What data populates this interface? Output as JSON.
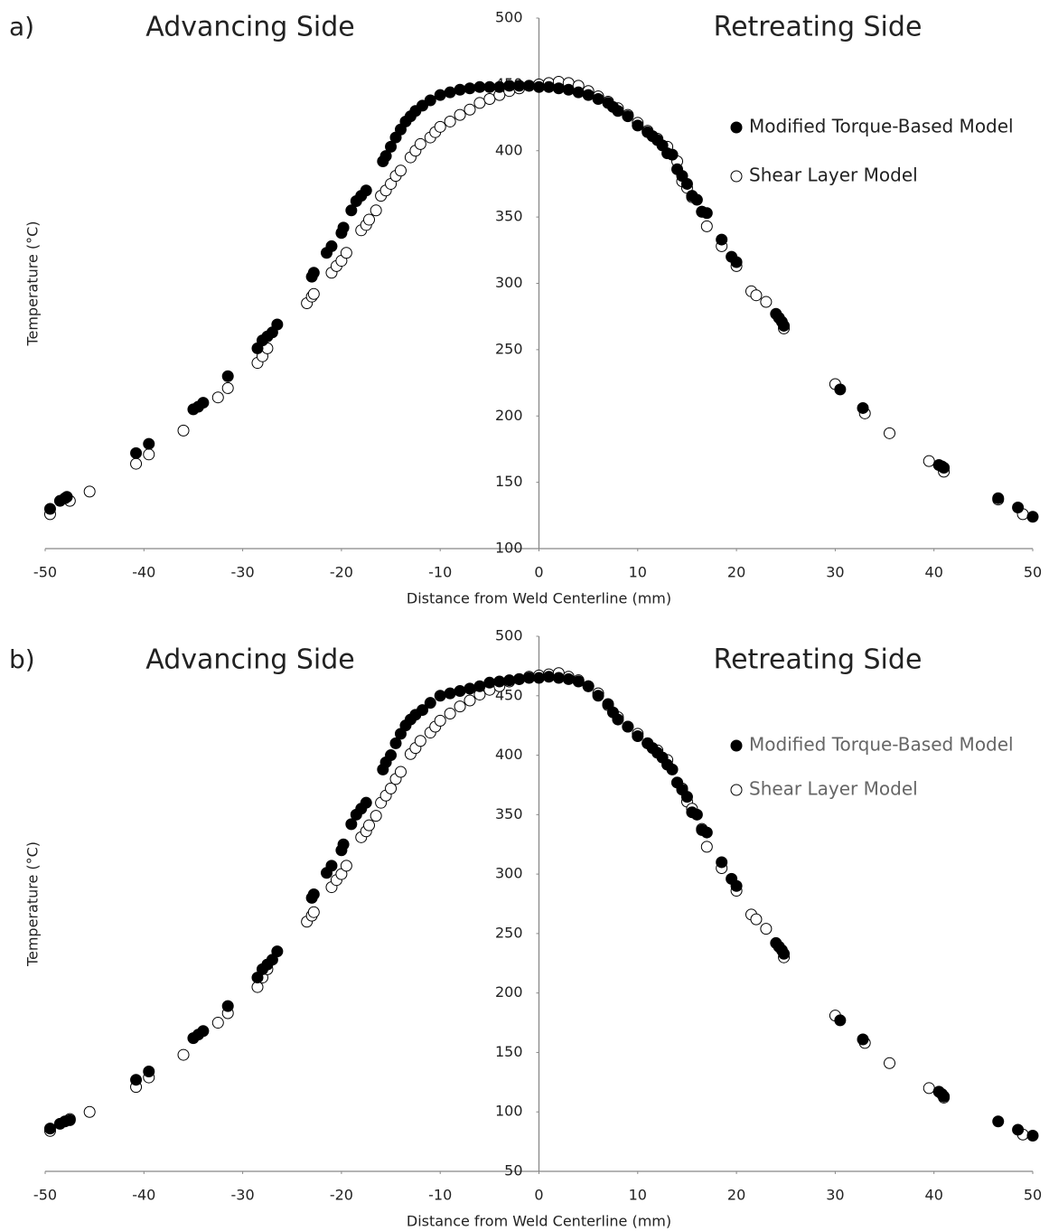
{
  "chart_data": [
    {
      "type": "scatter",
      "panel_label": "a)",
      "annotations": [
        "Advancing Side",
        "Retreating Side"
      ],
      "xlabel": "Distance from Weld Centerline (mm)",
      "ylabel": "Temperature (°C)",
      "xlim": [
        -50,
        50
      ],
      "xticks": [
        -50,
        -40,
        -30,
        -20,
        -10,
        0,
        10,
        20,
        30,
        40,
        50
      ],
      "ylim": [
        100,
        500
      ],
      "yticks": [
        100,
        150,
        200,
        250,
        300,
        350,
        400,
        450,
        500
      ],
      "grid": false,
      "legend": "upper right",
      "legend_text_color": "#222222",
      "series": [
        {
          "name": "Modified Torque-Based Model",
          "color": "#000000",
          "marker": "filled",
          "x": [
            -49.5,
            -48.5,
            -48,
            -47.8,
            -40.8,
            -39.5,
            -35,
            -34.5,
            -34,
            -31.5,
            -28.5,
            -28,
            -27.5,
            -27,
            -26.5,
            -23,
            -22.8,
            -21.5,
            -21,
            -20,
            -19.8,
            -19,
            -18.5,
            -18,
            -17.5,
            -15.8,
            -15.5,
            -15,
            -14.5,
            -14,
            -13.5,
            -13,
            -12.5,
            -11.8,
            -11,
            -10,
            -9,
            -8,
            -7,
            -6,
            -5,
            -4,
            -3,
            -2,
            -1,
            0,
            1,
            2,
            3,
            4,
            5,
            6,
            7,
            7.5,
            8,
            9,
            10,
            11,
            11.5,
            12,
            12.5,
            13,
            13.5,
            14,
            14.5,
            15,
            15.5,
            16,
            16.5,
            17,
            18.5,
            19.5,
            20,
            24,
            24.3,
            24.6,
            24.8,
            30.5,
            32.8,
            40.5,
            40.8,
            41,
            46.5,
            48.5,
            50
          ],
          "values": [
            130,
            136,
            138,
            139,
            172,
            179,
            205,
            207,
            210,
            230,
            251,
            257,
            260,
            263,
            269,
            305,
            308,
            323,
            328,
            338,
            342,
            355,
            362,
            366,
            370,
            392,
            396,
            403,
            410,
            416,
            422,
            426,
            430,
            434,
            438,
            442,
            444,
            446,
            447,
            448,
            448,
            448,
            449,
            449,
            449,
            448,
            448,
            447,
            446,
            444,
            442,
            439,
            436,
            433,
            430,
            426,
            419,
            414,
            411,
            408,
            404,
            398,
            397,
            386,
            381,
            375,
            366,
            363,
            354,
            353,
            333,
            320,
            316,
            277,
            274,
            271,
            268,
            220,
            206,
            163,
            162,
            161,
            138,
            131,
            124
          ]
        },
        {
          "name": "Shear Layer Model",
          "color": "#000000",
          "marker": "open",
          "x": [
            -49.5,
            -47.5,
            -45.5,
            -40.8,
            -39.5,
            -36,
            -32.5,
            -31.5,
            -28.5,
            -28,
            -27.5,
            -23.5,
            -23,
            -22.8,
            -21,
            -20.5,
            -20,
            -19.5,
            -18,
            -17.5,
            -17.2,
            -16.5,
            -16,
            -15.5,
            -15,
            -14.5,
            -14,
            -13,
            -12.5,
            -12,
            -11,
            -10.5,
            -10,
            -9,
            -8,
            -7,
            -6,
            -5,
            -4,
            -3,
            -2,
            -1,
            0,
            1,
            2,
            3,
            4,
            5,
            6,
            7,
            8,
            9,
            10,
            11,
            12,
            13,
            14,
            14.5,
            15,
            15.5,
            16.5,
            17,
            18.5,
            20,
            21.5,
            22,
            23,
            24.8,
            30,
            33,
            35.5,
            39.5,
            41,
            46.5,
            49
          ],
          "values": [
            126,
            136,
            143,
            164,
            171,
            189,
            214,
            221,
            240,
            245,
            251,
            285,
            290,
            292,
            308,
            313,
            317,
            323,
            340,
            344,
            348,
            355,
            366,
            370,
            375,
            381,
            385,
            395,
            400,
            405,
            410,
            414,
            418,
            422,
            427,
            431,
            436,
            439,
            442,
            445,
            447,
            449,
            450,
            451,
            452,
            451,
            449,
            445,
            441,
            437,
            432,
            427,
            421,
            415,
            409,
            403,
            392,
            377,
            372,
            365,
            354,
            343,
            328,
            313,
            294,
            291,
            286,
            266,
            224,
            202,
            187,
            166,
            158,
            137,
            126
          ]
        }
      ]
    },
    {
      "type": "scatter",
      "panel_label": "b)",
      "annotations": [
        "Advancing Side",
        "Retreating Side"
      ],
      "xlabel": "Distance from Weld Centerline (mm)",
      "ylabel": "Temperature (°C)",
      "xlim": [
        -50,
        50
      ],
      "xticks": [
        -50,
        -40,
        -30,
        -20,
        -10,
        0,
        10,
        20,
        30,
        40,
        50
      ],
      "ylim": [
        50,
        500
      ],
      "yticks": [
        50,
        100,
        150,
        200,
        250,
        300,
        350,
        400,
        450,
        500
      ],
      "grid": false,
      "legend": "upper right",
      "legend_text_color": "#666666",
      "series": [
        {
          "name": "Modified Torque-Based Model",
          "color": "#000000",
          "marker": "filled",
          "x": [
            -49.5,
            -48.5,
            -48,
            -47.5,
            -40.8,
            -39.5,
            -35,
            -34.5,
            -34,
            -31.5,
            -28.5,
            -28,
            -27.5,
            -27,
            -26.5,
            -23,
            -22.8,
            -21.5,
            -21,
            -20,
            -19.8,
            -19,
            -18.5,
            -18,
            -17.5,
            -15.8,
            -15.5,
            -15,
            -14.5,
            -14,
            -13.5,
            -13,
            -12.5,
            -11.8,
            -11,
            -10,
            -9,
            -8,
            -7,
            -6,
            -5,
            -4,
            -3,
            -2,
            -1,
            0,
            1,
            2,
            3,
            4,
            5,
            6,
            7,
            7.5,
            8,
            9,
            10,
            11,
            11.5,
            12,
            12.5,
            13,
            13.5,
            14,
            14.5,
            15,
            15.5,
            16,
            16.5,
            17,
            18.5,
            19.5,
            20,
            24,
            24.3,
            24.6,
            24.8,
            30.5,
            32.8,
            40.5,
            40.8,
            41,
            46.5,
            48.5,
            50
          ],
          "values": [
            86,
            90,
            92,
            93,
            127,
            134,
            162,
            165,
            168,
            189,
            213,
            220,
            224,
            228,
            235,
            280,
            283,
            301,
            307,
            320,
            325,
            342,
            350,
            355,
            360,
            388,
            394,
            400,
            410,
            418,
            425,
            430,
            434,
            438,
            444,
            450,
            452,
            454,
            456,
            458,
            461,
            462,
            463,
            464,
            465,
            465,
            466,
            465,
            464,
            462,
            458,
            450,
            443,
            436,
            430,
            424,
            416,
            410,
            406,
            402,
            398,
            392,
            388,
            377,
            371,
            365,
            352,
            350,
            337,
            335,
            310,
            296,
            290,
            242,
            239,
            236,
            233,
            177,
            161,
            117,
            115,
            113,
            92,
            85,
            80
          ]
        },
        {
          "name": "Shear Layer Model",
          "color": "#000000",
          "marker": "open",
          "x": [
            -49.5,
            -47.5,
            -45.5,
            -40.8,
            -39.5,
            -36,
            -32.5,
            -31.5,
            -28.5,
            -28,
            -27.5,
            -23.5,
            -23,
            -22.8,
            -21,
            -20.5,
            -20,
            -19.5,
            -18,
            -17.5,
            -17.2,
            -16.5,
            -16,
            -15.5,
            -15,
            -14.5,
            -14,
            -13,
            -12.5,
            -12,
            -11,
            -10.5,
            -10,
            -9,
            -8,
            -7,
            -6,
            -5,
            -4,
            -3,
            -2,
            -1,
            0,
            1,
            2,
            3,
            4,
            5,
            6,
            7,
            8,
            9,
            10,
            11,
            12,
            13,
            14,
            14.5,
            15,
            15.5,
            16.5,
            17,
            18.5,
            20,
            21.5,
            22,
            23,
            24.8,
            30,
            33,
            35.5,
            39.5,
            41,
            49
          ],
          "values": [
            84,
            94,
            100,
            121,
            129,
            148,
            175,
            183,
            205,
            213,
            220,
            260,
            265,
            268,
            289,
            295,
            300,
            307,
            331,
            336,
            341,
            349,
            360,
            366,
            372,
            380,
            386,
            401,
            406,
            412,
            419,
            424,
            429,
            435,
            441,
            446,
            451,
            455,
            458,
            462,
            464,
            466,
            467,
            468,
            469,
            466,
            463,
            458,
            452,
            442,
            432,
            424,
            418,
            410,
            404,
            396,
            377,
            372,
            361,
            355,
            338,
            323,
            305,
            286,
            266,
            262,
            254,
            230,
            181,
            158,
            141,
            120,
            112,
            81
          ]
        }
      ]
    }
  ]
}
